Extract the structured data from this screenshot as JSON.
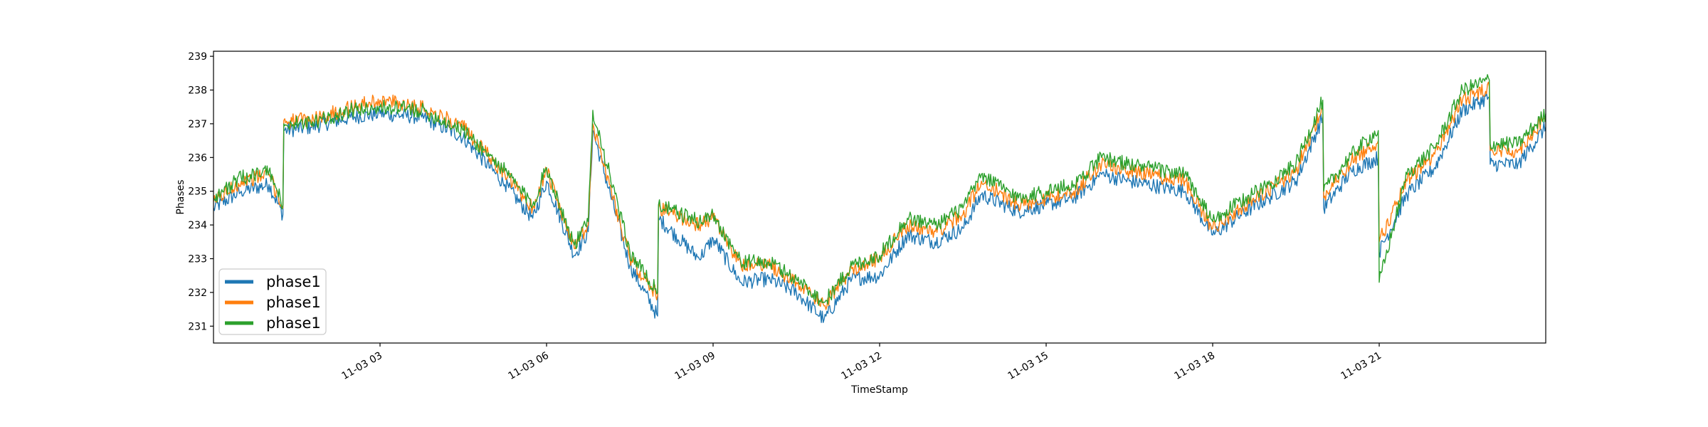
{
  "chart_data": {
    "type": "line",
    "title": "",
    "xlabel": "TimeStamp",
    "ylabel": "Phases",
    "xlim": [
      "11-03 00:00",
      "11-03 24:00"
    ],
    "ylim": [
      230.5,
      239.15
    ],
    "x_tick_labels": [
      "11-03 03",
      "11-03 06",
      "11-03 09",
      "11-03 12",
      "11-03 15",
      "11-03 18",
      "11-03 21"
    ],
    "y_tick_labels": [
      "231",
      "232",
      "233",
      "234",
      "235",
      "236",
      "237",
      "238",
      "239"
    ],
    "grid": false,
    "legend_position": "lower-left",
    "x": [
      "11-03 00:00",
      "11-03 00:30",
      "11-03 01:00",
      "11-03 01:15",
      "11-03 01:16",
      "11-03 01:45",
      "11-03 02:30",
      "11-03 03:00",
      "11-03 03:45",
      "11-03 04:30",
      "11-03 05:15",
      "11-03 05:45",
      "11-03 06:00",
      "11-03 06:30",
      "11-03 06:45",
      "11-03 06:50",
      "11-03 07:30",
      "11-03 08:00",
      "11-03 08:01",
      "11-03 08:45",
      "11-03 09:00",
      "11-03 09:30",
      "11-03 10:00",
      "11-03 10:30",
      "11-03 11:00",
      "11-03 11:30",
      "11-03 12:00",
      "11-03 12:30",
      "11-03 13:00",
      "11-03 13:30",
      "11-03 13:50",
      "11-03 14:30",
      "11-03 15:00",
      "11-03 15:30",
      "11-03 16:00",
      "11-03 16:30",
      "11-03 17:30",
      "11-03 18:00",
      "11-03 18:30",
      "11-03 19:00",
      "11-03 19:30",
      "11-03 19:59",
      "11-03 20:00",
      "11-03 20:30",
      "11-03 20:59",
      "11-03 21:00",
      "11-03 21:30",
      "11-03 22:00",
      "11-03 22:30",
      "11-03 22:59",
      "11-03 23:00",
      "11-03 23:30",
      "11-03 24:00"
    ],
    "series": [
      {
        "name": "phase1",
        "color": "#1f77b4",
        "values": [
          234.5,
          235.0,
          235.2,
          234.3,
          236.8,
          236.9,
          237.2,
          237.3,
          237.2,
          236.6,
          235.2,
          234.2,
          235.3,
          233.1,
          233.8,
          236.8,
          232.8,
          231.3,
          234.2,
          233.0,
          233.6,
          232.3,
          232.4,
          232.0,
          231.2,
          232.4,
          232.5,
          233.7,
          233.5,
          233.9,
          234.9,
          234.4,
          234.6,
          234.8,
          235.5,
          235.3,
          235.0,
          233.7,
          234.3,
          234.8,
          235.3,
          237.2,
          234.5,
          235.6,
          236.0,
          233.2,
          234.9,
          235.7,
          237.4,
          237.8,
          235.8,
          235.8,
          236.9
        ]
      },
      {
        "name": "phase1",
        "color": "#ff7f0e",
        "values": [
          234.7,
          235.3,
          235.5,
          234.5,
          237.1,
          237.1,
          237.5,
          237.7,
          237.5,
          236.9,
          235.5,
          234.5,
          235.6,
          233.3,
          234.0,
          237.0,
          233.0,
          231.9,
          234.5,
          234.0,
          234.2,
          232.8,
          232.8,
          232.3,
          231.6,
          232.7,
          233.0,
          234.0,
          233.8,
          234.3,
          235.3,
          234.6,
          234.8,
          235.0,
          235.8,
          235.6,
          235.3,
          233.9,
          234.5,
          235.0,
          235.6,
          237.5,
          234.8,
          235.9,
          236.5,
          233.5,
          235.3,
          236.1,
          237.7,
          238.1,
          236.2,
          236.2,
          237.2
        ]
      },
      {
        "name": "phase1",
        "color": "#2ca02c",
        "values": [
          234.8,
          235.4,
          235.6,
          234.6,
          237.0,
          237.0,
          237.4,
          237.5,
          237.4,
          236.8,
          235.6,
          234.6,
          235.7,
          233.4,
          234.1,
          237.4,
          233.2,
          232.0,
          234.6,
          234.1,
          234.3,
          232.9,
          232.9,
          232.4,
          231.7,
          232.8,
          233.1,
          234.2,
          234.0,
          234.5,
          235.5,
          234.8,
          235.0,
          235.2,
          236.0,
          235.8,
          235.5,
          234.1,
          234.7,
          235.2,
          235.8,
          237.7,
          235.0,
          236.1,
          236.8,
          232.3,
          235.5,
          236.3,
          238.0,
          238.3,
          236.4,
          236.4,
          237.3
        ]
      }
    ]
  }
}
